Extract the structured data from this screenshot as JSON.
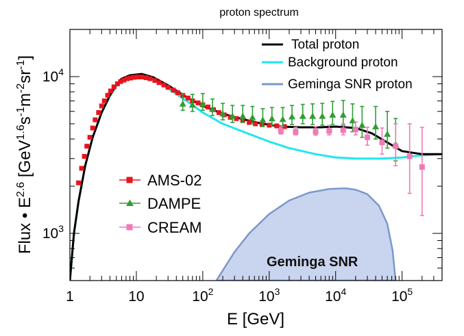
{
  "chart_data": {
    "type": "line",
    "title": "proton spectrum",
    "xlabel": "E [GeV]",
    "ylabel_parts": {
      "a": "Flux • E",
      "a_sup": "2.6",
      "b": " [GeV",
      "b_sup": "1.6",
      "c": "s",
      "c_sup": "-1",
      "d": "m",
      "d_sup": "-2",
      "e": "sr",
      "e_sup": "-1",
      "f": "]"
    },
    "x_scale": "log",
    "y_scale": "log",
    "xlim": [
      1,
      400000
    ],
    "ylim": [
      500,
      20000
    ],
    "x_ticks": [
      {
        "value": 1,
        "base": "1",
        "exp": ""
      },
      {
        "value": 10,
        "base": "10",
        "exp": ""
      },
      {
        "value": 100,
        "base": "10",
        "exp": "2"
      },
      {
        "value": 1000,
        "base": "10",
        "exp": "3"
      },
      {
        "value": 10000,
        "base": "10",
        "exp": "4"
      },
      {
        "value": 100000,
        "base": "10",
        "exp": "5"
      }
    ],
    "y_ticks": [
      {
        "value": 1000,
        "base": "10",
        "exp": "3"
      },
      {
        "value": 10000,
        "base": "10",
        "exp": "4"
      }
    ],
    "series": [
      {
        "name": "Total proton",
        "kind": "line",
        "color": "#000000",
        "points": [
          [
            1,
            500
          ],
          [
            1.15,
            1000
          ],
          [
            1.35,
            1600
          ],
          [
            1.7,
            2700
          ],
          [
            2.2,
            4100
          ],
          [
            3,
            5900
          ],
          [
            4,
            7600
          ],
          [
            5,
            8900
          ],
          [
            6,
            9700
          ],
          [
            8,
            10200
          ],
          [
            12,
            10400
          ],
          [
            18,
            9900
          ],
          [
            30,
            8800
          ],
          [
            60,
            7300
          ],
          [
            100,
            6500
          ],
          [
            200,
            5800
          ],
          [
            400,
            5350
          ],
          [
            800,
            5000
          ],
          [
            1500,
            4800
          ],
          [
            3000,
            4750
          ],
          [
            6000,
            4750
          ],
          [
            10000,
            4800
          ],
          [
            20000,
            4700
          ],
          [
            35000,
            4350
          ],
          [
            60000,
            3800
          ],
          [
            100000,
            3350
          ],
          [
            200000,
            3200
          ],
          [
            400000,
            3200
          ]
        ]
      },
      {
        "name": "Background proton",
        "kind": "line",
        "color": "#1fe6f0",
        "points": [
          [
            1,
            500
          ],
          [
            1.15,
            1000
          ],
          [
            1.35,
            1600
          ],
          [
            1.7,
            2700
          ],
          [
            2.2,
            4100
          ],
          [
            3,
            5850
          ],
          [
            4,
            7500
          ],
          [
            5,
            8700
          ],
          [
            6,
            9500
          ],
          [
            8,
            9950
          ],
          [
            12,
            10050
          ],
          [
            18,
            9600
          ],
          [
            30,
            8400
          ],
          [
            60,
            6900
          ],
          [
            100,
            5900
          ],
          [
            200,
            5000
          ],
          [
            500,
            4300
          ],
          [
            1000,
            3850
          ],
          [
            2000,
            3500
          ],
          [
            5000,
            3200
          ],
          [
            10000,
            3050
          ],
          [
            20000,
            3000
          ],
          [
            50000,
            3000
          ],
          [
            100000,
            3050
          ],
          [
            200000,
            3150
          ],
          [
            400000,
            3200
          ]
        ]
      },
      {
        "name": "Geminga SNR proton",
        "kind": "area",
        "color": "#7a98cc",
        "fill": "#c9d4ee",
        "points": [
          [
            160,
            500
          ],
          [
            200,
            580
          ],
          [
            300,
            760
          ],
          [
            500,
            1000
          ],
          [
            1000,
            1330
          ],
          [
            2000,
            1620
          ],
          [
            4000,
            1820
          ],
          [
            8000,
            1920
          ],
          [
            14000,
            1940
          ],
          [
            20000,
            1900
          ],
          [
            30000,
            1780
          ],
          [
            45000,
            1500
          ],
          [
            60000,
            1150
          ],
          [
            72000,
            780
          ],
          [
            80000,
            500
          ]
        ]
      }
    ],
    "data_sets": [
      {
        "name": "AMS-02",
        "color": "#e8141c",
        "marker": "square",
        "points": [
          [
            1.35,
            2100
          ],
          [
            1.5,
            2600
          ],
          [
            1.65,
            3100
          ],
          [
            1.8,
            3600
          ],
          [
            2.0,
            4100
          ],
          [
            2.2,
            4700
          ],
          [
            2.4,
            5300
          ],
          [
            2.7,
            5900
          ],
          [
            3.0,
            6500
          ],
          [
            3.3,
            7000
          ],
          [
            3.7,
            7600
          ],
          [
            4.1,
            8100
          ],
          [
            4.6,
            8600
          ],
          [
            5.2,
            9000
          ],
          [
            5.8,
            9300
          ],
          [
            6.5,
            9500
          ],
          [
            7.3,
            9700
          ],
          [
            8.2,
            9800
          ],
          [
            9.2,
            9900
          ],
          [
            10.5,
            9950
          ],
          [
            12,
            9950
          ],
          [
            14,
            9850
          ],
          [
            16,
            9700
          ],
          [
            19,
            9450
          ],
          [
            22,
            9150
          ],
          [
            26,
            8850
          ],
          [
            30,
            8550
          ],
          [
            36,
            8200
          ],
          [
            42,
            7900
          ],
          [
            50,
            7600
          ],
          [
            60,
            7300
          ],
          [
            70,
            7000
          ],
          [
            85,
            6800
          ],
          [
            100,
            6600
          ],
          [
            120,
            6400
          ],
          [
            145,
            6150
          ],
          [
            175,
            5900
          ],
          [
            210,
            5700
          ],
          [
            260,
            5500
          ],
          [
            320,
            5400
          ],
          [
            400,
            5250
          ],
          [
            500,
            5100
          ],
          [
            620,
            5000
          ],
          [
            780,
            4950
          ],
          [
            1000,
            4900
          ],
          [
            1300,
            4850
          ],
          [
            1700,
            4800
          ]
        ]
      },
      {
        "name": "DAMPE",
        "color": "#2e9e34",
        "marker": "triangle",
        "points": [
          [
            50,
            6700
          ],
          [
            70,
            6600
          ],
          [
            100,
            6700
          ],
          [
            140,
            6200
          ],
          [
            200,
            5800
          ],
          [
            280,
            5600
          ],
          [
            400,
            5600
          ],
          [
            560,
            5500
          ],
          [
            800,
            5300
          ],
          [
            1100,
            5400
          ],
          [
            1600,
            5350
          ],
          [
            2200,
            5550
          ],
          [
            3200,
            5600
          ],
          [
            4500,
            5600
          ],
          [
            6300,
            5600
          ],
          [
            9000,
            5700
          ],
          [
            13000,
            5700
          ],
          [
            18000,
            5250
          ],
          [
            25000,
            4900
          ],
          [
            40000,
            4800
          ],
          [
            60000,
            4300
          ],
          [
            80000,
            3700
          ]
        ],
        "err": [
          [
            600,
            1100
          ],
          [
            600,
            1100
          ],
          [
            600,
            1100
          ],
          [
            550,
            1000
          ],
          [
            500,
            950
          ],
          [
            500,
            950
          ],
          [
            500,
            950
          ],
          [
            500,
            950
          ],
          [
            500,
            950
          ],
          [
            500,
            950
          ],
          [
            550,
            1000
          ],
          [
            600,
            1000
          ],
          [
            600,
            1050
          ],
          [
            650,
            1100
          ],
          [
            700,
            1150
          ],
          [
            750,
            1250
          ],
          [
            800,
            1350
          ],
          [
            800,
            1450
          ],
          [
            800,
            1550
          ],
          [
            800,
            1650
          ],
          [
            800,
            1700
          ],
          [
            800,
            1700
          ]
        ]
      },
      {
        "name": "CREAM",
        "color": "#f07ab8",
        "marker": "square",
        "points": [
          [
            1500,
            4500
          ],
          [
            2500,
            4450
          ],
          [
            5000,
            4450
          ],
          [
            8000,
            4500
          ],
          [
            13000,
            4550
          ],
          [
            20000,
            4600
          ],
          [
            30000,
            4100
          ],
          [
            50000,
            3800
          ],
          [
            80000,
            3600
          ],
          [
            130000,
            3100
          ],
          [
            200000,
            2650
          ]
        ],
        "err": [
          [
            200,
            300
          ],
          [
            200,
            300
          ],
          [
            220,
            350
          ],
          [
            250,
            380
          ],
          [
            300,
            450
          ],
          [
            350,
            550
          ],
          [
            450,
            650
          ],
          [
            600,
            900
          ],
          [
            900,
            1400
          ],
          [
            1300,
            1900
          ],
          [
            1350,
            2100
          ]
        ]
      }
    ],
    "legend_top": [
      "Total proton",
      "Background proton",
      "Geminga SNR proton"
    ],
    "legend_bottom": [
      "AMS-02",
      "DAMPE",
      "CREAM"
    ],
    "annotation": "Geminga SNR"
  }
}
